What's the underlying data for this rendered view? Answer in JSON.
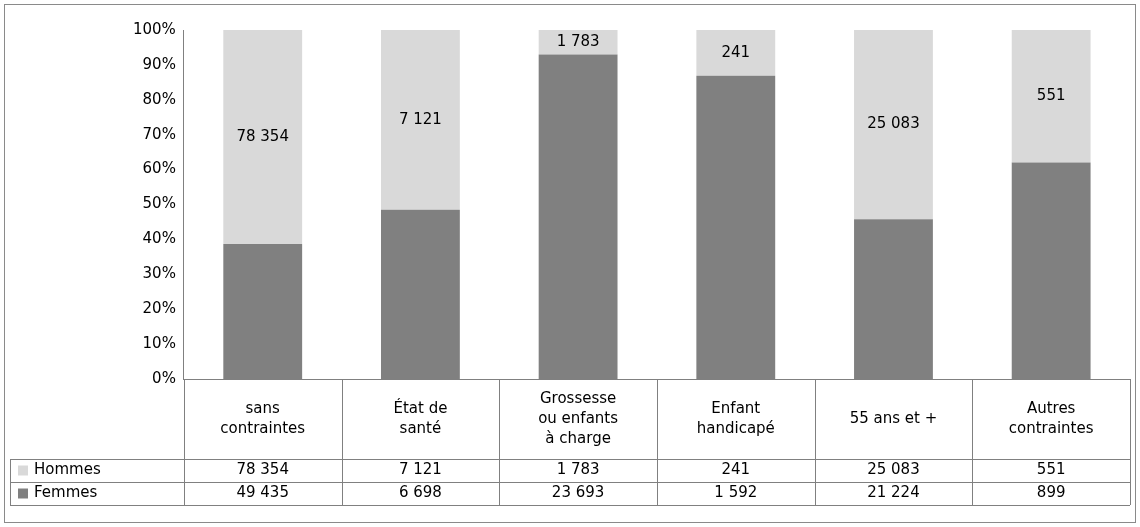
{
  "chart_data": {
    "type": "bar",
    "stacked": true,
    "legend": "bottom",
    "categories": [
      "sans contraintes",
      "État de santé",
      "Grossesse ou enfants à charge",
      "Enfant handicapé",
      "55 ans et +",
      "Autres contraintes"
    ],
    "series": [
      {
        "name": "Femmes",
        "color": "#808080",
        "values": [
          38.7,
          48.5,
          93.0,
          86.9,
          45.8,
          62.0
        ]
      },
      {
        "name": "Hommes",
        "color": "#d9d9d9",
        "values": [
          61.3,
          51.5,
          7.0,
          13.1,
          54.2,
          38.0
        ]
      }
    ],
    "ylim": [
      0,
      100
    ],
    "yticks": [
      {
        "value": 0,
        "label": "0%"
      },
      {
        "value": 10,
        "label": "10%"
      },
      {
        "value": 20,
        "label": "20%"
      },
      {
        "value": 30,
        "label": "30%"
      },
      {
        "value": 40,
        "label": "40%"
      },
      {
        "value": 50,
        "label": "50%"
      },
      {
        "value": 60,
        "label": "60%"
      },
      {
        "value": 70,
        "label": "70%"
      },
      {
        "value": 80,
        "label": "80%"
      },
      {
        "value": 90,
        "label": "90%"
      },
      {
        "value": 100,
        "label": "100%"
      }
    ],
    "annotations": [
      "78 354",
      "7 121",
      "1 783",
      "241",
      "25 083",
      "551",
      "78 354",
      "7 121",
      "1 783",
      "241",
      "25 083",
      "551",
      "49 435",
      "6 698",
      "23 693",
      "1 592",
      "21 224",
      "899"
    ]
  }
}
